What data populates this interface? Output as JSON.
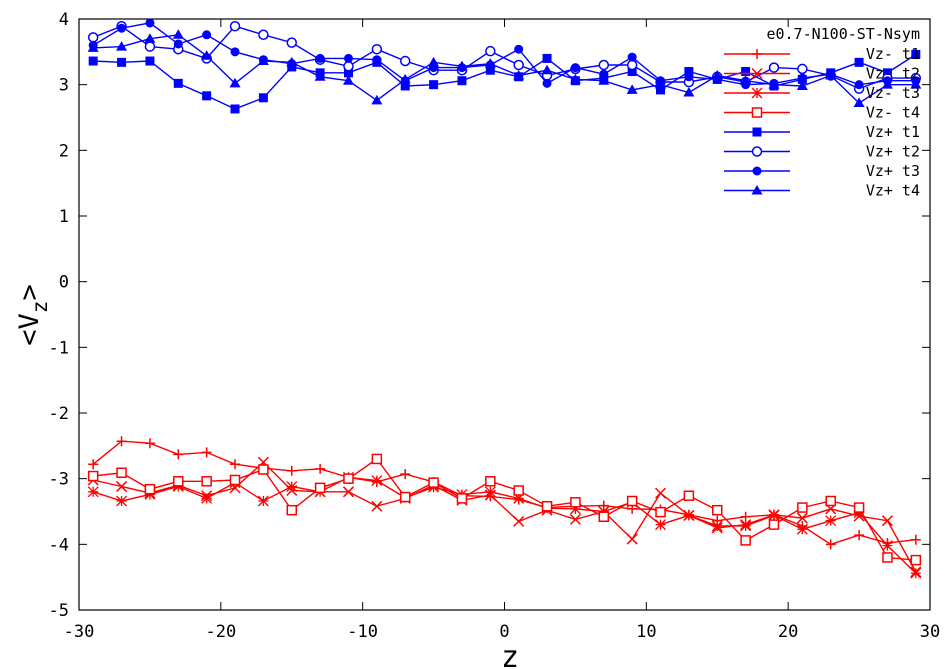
{
  "chart_data": {
    "type": "line",
    "title": "e0.7-N100-ST-Nsym",
    "xlabel": "z",
    "ylabel_main": "<V",
    "ylabel_sub": "z",
    "ylabel_end": ">",
    "xlim": [
      -30,
      30
    ],
    "ylim": [
      -5,
      4
    ],
    "xticks": [
      -30,
      -20,
      -10,
      0,
      10,
      20,
      30
    ],
    "yticks": [
      -5,
      -4,
      -3,
      -2,
      -1,
      0,
      1,
      2,
      3,
      4
    ],
    "legend_position": "top-right",
    "grid": false,
    "colors": {
      "red": "#ff0000",
      "blue": "#0000ff"
    },
    "x": [
      -29,
      -27,
      -25,
      -23,
      -21,
      -19,
      -17,
      -15,
      -13,
      -11,
      -9,
      -7,
      -5,
      -3,
      -1,
      1,
      3,
      5,
      7,
      9,
      11,
      13,
      15,
      17,
      19,
      21,
      23,
      25,
      27,
      29
    ],
    "series": [
      {
        "name": "Vz- t1",
        "color": "#ff0000",
        "marker": "plus",
        "values": [
          -2.78,
          -2.43,
          -2.46,
          -2.63,
          -2.6,
          -2.78,
          -2.84,
          -2.88,
          -2.85,
          -2.98,
          -3.05,
          -2.93,
          -3.05,
          -3.26,
          -3.27,
          -3.32,
          -3.44,
          -3.42,
          -3.41,
          -3.46,
          -3.47,
          -3.55,
          -3.64,
          -3.58,
          -3.55,
          -3.72,
          -4.0,
          -3.86,
          -3.98,
          -3.93
        ]
      },
      {
        "name": "Vz- t2",
        "color": "#ff0000",
        "marker": "cross",
        "values": [
          -3.02,
          -3.12,
          -3.22,
          -3.1,
          -3.26,
          -3.14,
          -2.75,
          -3.18,
          -3.2,
          -3.2,
          -3.42,
          -3.3,
          -3.1,
          -3.33,
          -3.25,
          -3.65,
          -3.48,
          -3.62,
          -3.5,
          -3.92,
          -3.22,
          -3.56,
          -3.75,
          -3.7,
          -3.55,
          -3.6,
          -3.46,
          -3.57,
          -3.64,
          -4.42
        ]
      },
      {
        "name": "Vz- t3",
        "color": "#ff0000",
        "marker": "asterisk",
        "values": [
          -3.2,
          -3.34,
          -3.24,
          -3.12,
          -3.3,
          -3.06,
          -3.34,
          -3.12,
          -3.2,
          -2.98,
          -3.03,
          -3.29,
          -3.13,
          -3.24,
          -3.2,
          -3.3,
          -3.45,
          -3.46,
          -3.5,
          -3.36,
          -3.7,
          -3.56,
          -3.72,
          -3.72,
          -3.56,
          -3.77,
          -3.64,
          -3.52,
          -4.02,
          -4.44
        ]
      },
      {
        "name": "Vz- t4",
        "color": "#ff0000",
        "marker": "open-square",
        "values": [
          -2.96,
          -2.91,
          -3.16,
          -3.04,
          -3.04,
          -3.02,
          -2.86,
          -3.48,
          -3.14,
          -3.0,
          -2.7,
          -3.28,
          -3.06,
          -3.3,
          -3.04,
          -3.18,
          -3.42,
          -3.36,
          -3.58,
          -3.34,
          -3.51,
          -3.26,
          -3.48,
          -3.94,
          -3.7,
          -3.44,
          -3.34,
          -3.44,
          -4.2,
          -4.24
        ]
      },
      {
        "name": "Vz+ t1",
        "color": "#0000ff",
        "marker": "filled-square",
        "values": [
          3.36,
          3.34,
          3.36,
          3.02,
          2.83,
          2.63,
          2.8,
          3.27,
          3.18,
          3.18,
          3.34,
          2.98,
          3.0,
          3.06,
          3.22,
          3.12,
          3.4,
          3.06,
          3.1,
          3.2,
          2.92,
          3.2,
          3.08,
          3.2,
          2.98,
          3.08,
          3.18,
          3.34,
          3.18,
          3.46
        ]
      },
      {
        "name": "Vz+ t2",
        "color": "#0000ff",
        "marker": "open-circle",
        "values": [
          3.72,
          3.89,
          3.58,
          3.54,
          3.4,
          3.89,
          3.76,
          3.64,
          3.38,
          3.28,
          3.54,
          3.36,
          3.22,
          3.22,
          3.51,
          3.3,
          3.14,
          3.24,
          3.3,
          3.3,
          3.04,
          3.04,
          3.12,
          3.04,
          3.26,
          3.24,
          3.14,
          2.94,
          3.1,
          3.1
        ]
      },
      {
        "name": "Vz+ t3",
        "color": "#0000ff",
        "marker": "filled-circle",
        "values": [
          3.6,
          3.86,
          3.94,
          3.62,
          3.76,
          3.5,
          3.38,
          3.32,
          3.4,
          3.4,
          3.38,
          3.06,
          3.26,
          3.26,
          3.3,
          3.54,
          3.02,
          3.26,
          3.16,
          3.42,
          3.06,
          3.12,
          3.08,
          3.0,
          3.02,
          3.1,
          3.16,
          3.0,
          3.06,
          3.06
        ]
      },
      {
        "name": "Vz+ t4",
        "color": "#0000ff",
        "marker": "filled-triangle",
        "values": [
          3.56,
          3.58,
          3.7,
          3.76,
          3.44,
          3.02,
          3.36,
          3.34,
          3.12,
          3.06,
          2.76,
          3.08,
          3.34,
          3.28,
          3.32,
          3.14,
          3.22,
          3.08,
          3.06,
          2.92,
          3.0,
          2.88,
          3.14,
          3.06,
          3.0,
          2.98,
          3.14,
          2.72,
          3.0,
          3.0
        ]
      }
    ]
  }
}
